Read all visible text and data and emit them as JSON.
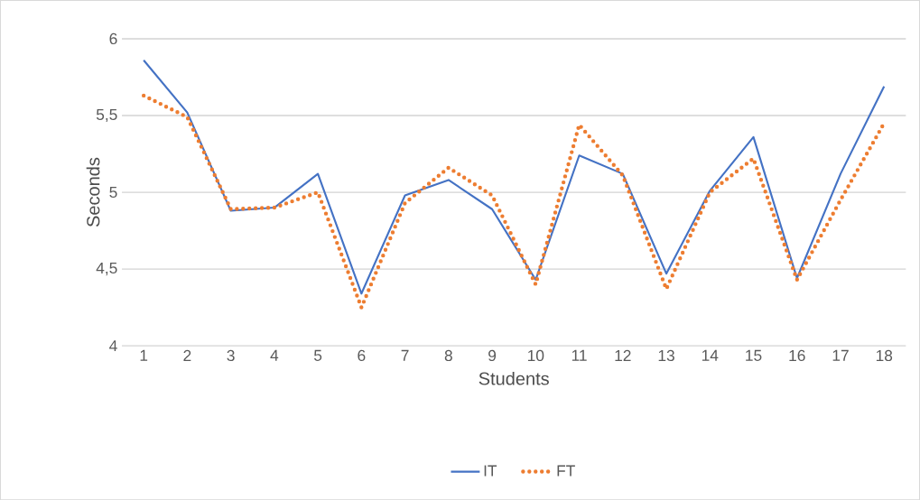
{
  "chart_data": {
    "type": "line",
    "xlabel": "Students",
    "ylabel": "Seconds",
    "categories": [
      "1",
      "2",
      "3",
      "4",
      "5",
      "6",
      "7",
      "8",
      "9",
      "10",
      "11",
      "12",
      "13",
      "14",
      "15",
      "16",
      "17",
      "18"
    ],
    "series": [
      {
        "name": "IT",
        "color": "#4472c4",
        "line_style": "solid",
        "values": [
          5.86,
          5.52,
          4.88,
          4.9,
          5.12,
          4.34,
          4.98,
          5.08,
          4.89,
          4.43,
          5.24,
          5.12,
          4.47,
          5.01,
          5.36,
          4.44,
          5.12,
          5.69
        ]
      },
      {
        "name": "FT",
        "color": "#ed7d31",
        "line_style": "dotted",
        "values": [
          5.63,
          5.49,
          4.89,
          4.9,
          5.0,
          4.25,
          4.93,
          5.16,
          4.98,
          4.4,
          5.44,
          5.11,
          4.37,
          5.0,
          5.22,
          4.43,
          4.95,
          5.45
        ]
      }
    ],
    "ylim": [
      4,
      6
    ],
    "yticks": [
      4,
      {
        "value": 4.5,
        "label": "4,5"
      },
      5,
      {
        "value": 5.5,
        "label": "5,5"
      },
      6
    ],
    "grid": "y",
    "legend": "bottom",
    "marker": "none"
  }
}
